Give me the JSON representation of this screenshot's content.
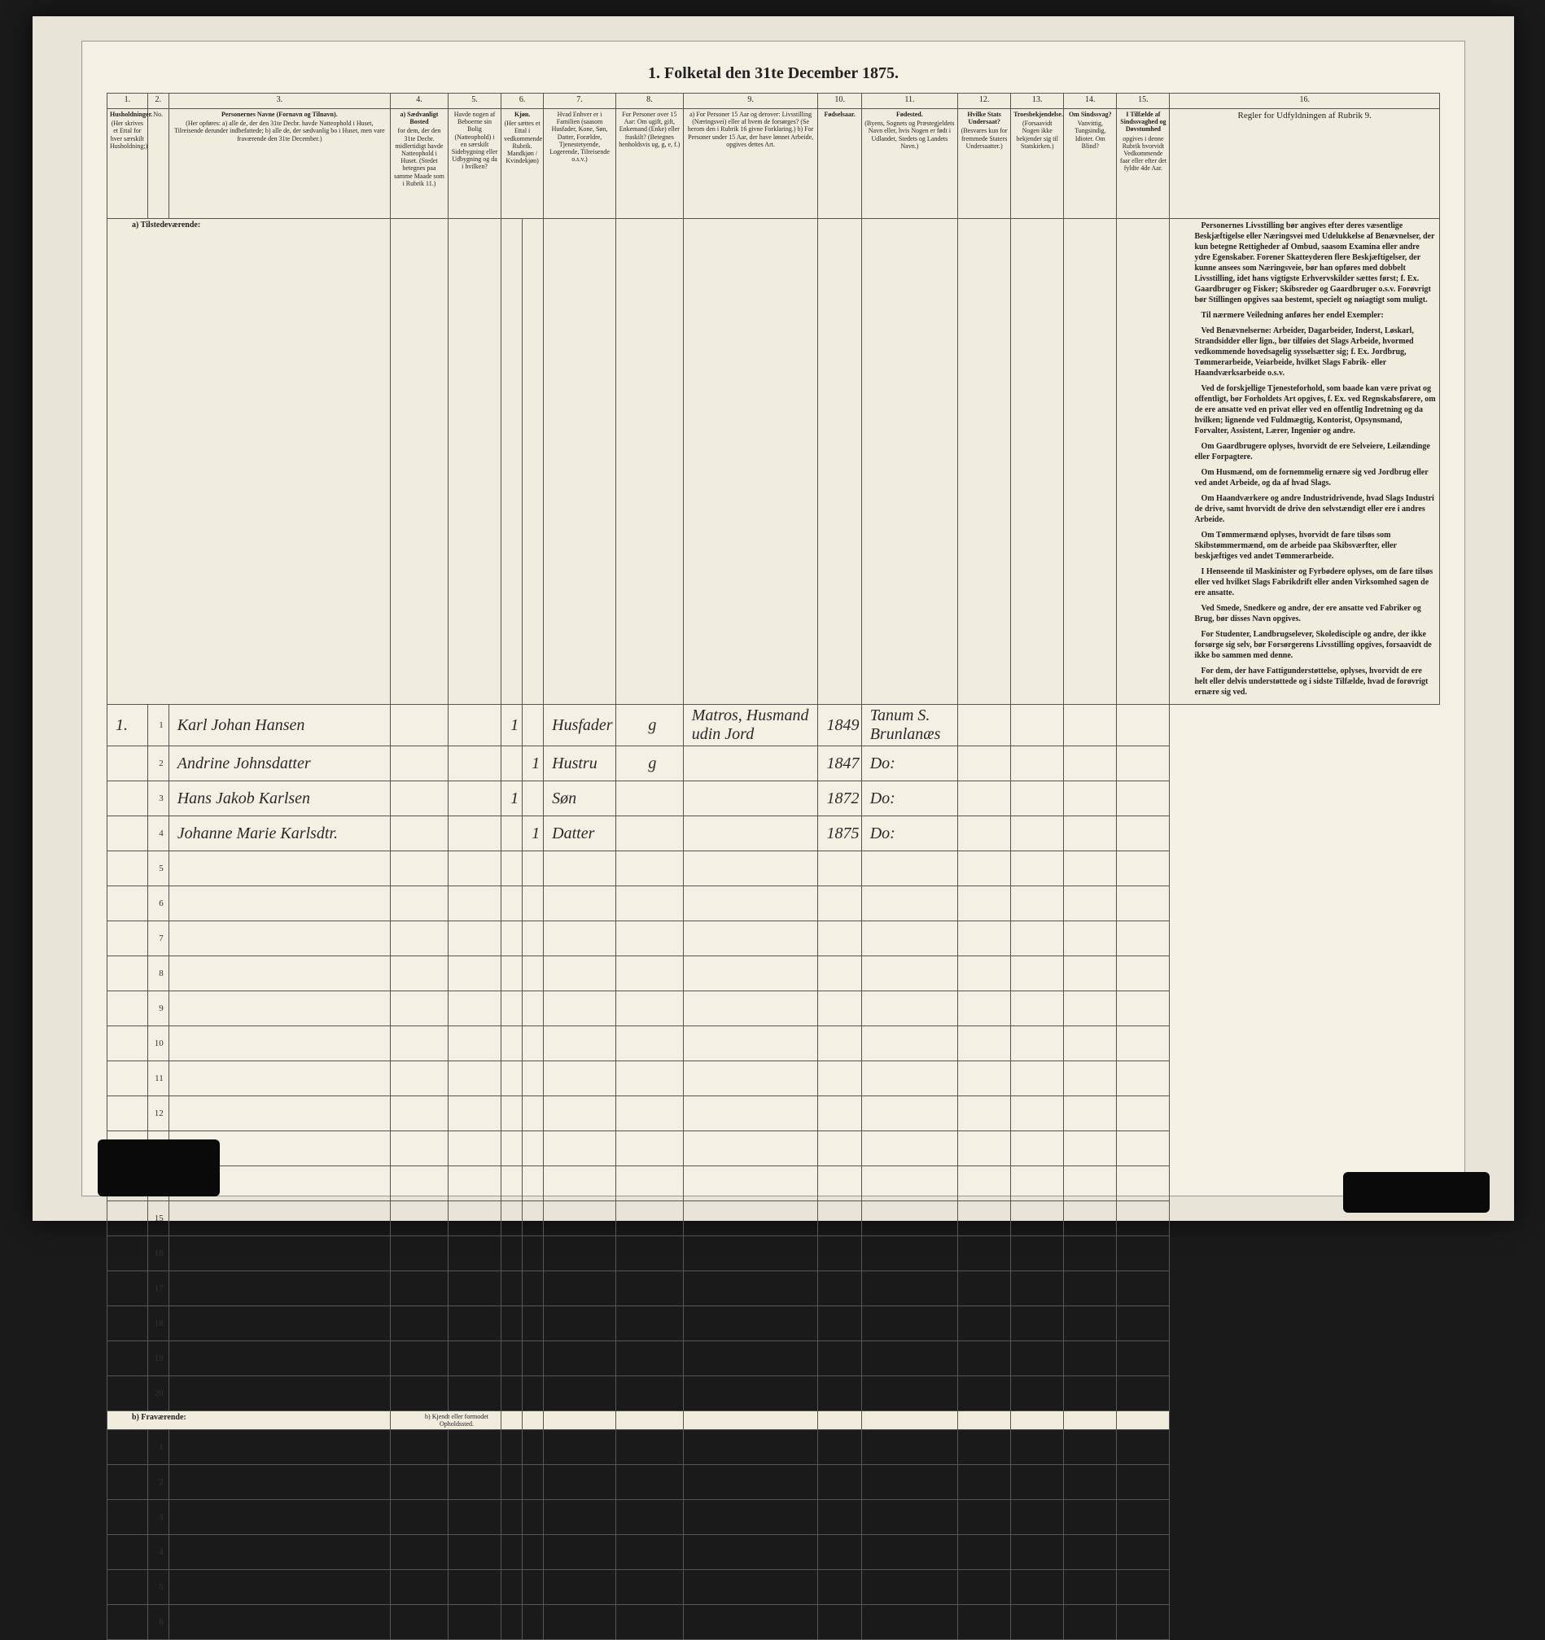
{
  "title": "1. Folketal den 31te December 1875.",
  "columns": {
    "nums": [
      "1.",
      "2.",
      "3.",
      "4.",
      "5.",
      "6.",
      "7.",
      "8.",
      "9.",
      "10.",
      "11.",
      "12.",
      "13.",
      "14.",
      "15.",
      "16."
    ],
    "h1": {
      "lbl": "Husholdninger.",
      "txt": "(Her skrives et Ettal for hver særskilt Husholdning;)"
    },
    "h2": {
      "txt": "No."
    },
    "h3": {
      "lbl": "Personernes Navne (Fornavn og Tilnavn).",
      "txt": "(Her opføres: a) alle de, der den 31te Decbr. havde Natteophold i Huset, Tilreisende derunder indbefattede; b) alle de, der sædvanlig bo i Huset, men vare fraværende den 31te December.)"
    },
    "h4": {
      "lbl": "a) Sædvanligt Bosted",
      "txt": "for dem, der den 31te Decbr. midlertidigt havde Natteophold i Huset. (Stedet betegnes paa samme Maade som i Rubrik 11.)"
    },
    "h5": {
      "txt": "Havde nogen af Beboerne sin Bolig (Natteophold) i en særskilt Sidebygning eller Udbygning og da i hvilken?"
    },
    "h6": {
      "lbl": "Kjøn.",
      "txt": "(Her sættes et Ettal i vedkommende Rubrik. Mandkjøn / Kvindekjøn)"
    },
    "h7": {
      "txt": "Hvad Enhver er i Familien (saasom Husfader, Kone, Søn, Datter, Forældre, Tjenestetyende, Logerende, Tilreisende o.s.v.)"
    },
    "h8": {
      "txt": "For Personer over 15 Aar: Om ugift, gift, Enkemand (Enke) eller fraskilt? (Betegnes henholdsvis ug, g, e, f.)"
    },
    "h9": {
      "txt": "a) For Personer 15 Aar og derover: Livsstilling (Næringsvei) eller af hvem de forsørges? (Se herom den i Rubrik 16 givne Forklaring.) b) For Personer under 15 Aar, der have lønnet Arbeide, opgives dettes Art."
    },
    "h10": {
      "lbl": "Fødselsaar."
    },
    "h11": {
      "lbl": "Fødested.",
      "txt": "(Byens, Sognets og Præstegjeldets Navn eller, hvis Nogen er født i Udlandet, Stedets og Landets Navn.)"
    },
    "h12": {
      "lbl": "Hvilke Stats Undersaat?",
      "txt": "(Besvares kun for fremmede Staters Undersaatter.)"
    },
    "h13": {
      "lbl": "Troesbekjendelse.",
      "txt": "(Forsaavidt Nogen ikke bekjender sig til Statskirken.)"
    },
    "h14": {
      "lbl": "Om Sindssvag?",
      "txt": "Vanvittig, Tungsindig, Idioter. Om Blind?"
    },
    "h15": {
      "lbl": "I Tilfælde af Sindssvaghed og Døvstumhed",
      "txt": "opgives i denne Rubrik hvorvidt Vedkommende faar eller efter det fyldte 4de Aar."
    },
    "h16": {
      "txt": "Regler for Udfyldningen af Rubrik 9."
    }
  },
  "section_a": "a) Tilstedeværende:",
  "section_b": "b) Fraværende:",
  "section_b_right": "b) Kjendt eller formodet Opholdssted.",
  "rows": [
    {
      "n": "1",
      "hh": "1.",
      "name": "Karl Johan Hansen",
      "sex_m": "1",
      "fam": "Husfader",
      "civ": "g",
      "occ": "Matros, Husmand udin Jord",
      "year": "1849",
      "place": "Tanum S. Brunlanæs"
    },
    {
      "n": "2",
      "hh": "",
      "name": "Andrine Johnsdatter",
      "sex_k": "1",
      "fam": "Hustru",
      "civ": "g",
      "occ": "",
      "year": "1847",
      "place": "Do:"
    },
    {
      "n": "3",
      "hh": "",
      "name": "Hans Jakob Karlsen",
      "sex_m": "1",
      "fam": "Søn",
      "civ": "",
      "occ": "",
      "year": "1872",
      "place": "Do:"
    },
    {
      "n": "4",
      "hh": "",
      "name": "Johanne Marie Karlsdtr.",
      "sex_k": "1",
      "fam": "Datter",
      "civ": "",
      "occ": "",
      "year": "1875",
      "place": "Do:"
    }
  ],
  "rules": [
    "Personernes Livsstilling bør angives efter deres væsentlige Beskjæftigelse eller Næringsvei med Udelukkelse af Benævnelser, der kun betegne Rettigheder af Ombud, saasom Examina eller andre ydre Egenskaber. Forener Skatteyderen flere Beskjæftigelser, der kunne ansees som Næringsveie, bør han opføres med dobbelt Livsstilling, idet hans vigtigste Erhvervskilder sættes først; f. Ex. Gaardbruger og Fisker; Skibsreder og Gaardbruger o.s.v. Forøvrigt bør Stillingen opgives saa bestemt, specielt og nøiagtigt som muligt.",
    "Til nærmere Veiledning anføres her endel Exempler:",
    "Ved Benævnelserne: Arbeider, Dagarbeider, Inderst, Løskarl, Strandsidder eller lign., bør tilføies det Slags Arbeide, hvormed vedkommende hovedsagelig sysselsætter sig; f. Ex. Jordbrug, Tømmerarbeide, Veiarbeide, hvilket Slags Fabrik- eller Haandværksarbeide o.s.v.",
    "Ved de forskjellige Tjenesteforhold, som baade kan være privat og offentligt, bør Forholdets Art opgives, f. Ex. ved Regnskabsførere, om de ere ansatte ved en privat eller ved en offentlig Indretning og da hvilken; lignende ved Fuldmægtig, Kontorist, Opsynsmand, Forvalter, Assistent, Lærer, Ingeniør og andre.",
    "Om Gaardbrugere oplyses, hvorvidt de ere Selveiere, Leilændinge eller Forpagtere.",
    "Om Husmænd, om de fornemmelig ernære sig ved Jordbrug eller ved andet Arbeide, og da af hvad Slags.",
    "Om Haandværkere og andre Industridrivende, hvad Slags Industri de drive, samt hvorvidt de drive den selvstændigt eller ere i andres Arbeide.",
    "Om Tømmermænd oplyses, hvorvidt de fare tilsøs som Skibstømmermænd, om de arbeide paa Skibsværfter, eller beskjæftiges ved andet Tømmerarbeide.",
    "I Henseende til Maskinister og Fyrbødere oplyses, om de fare tilsøs eller ved hvilket Slags Fabrikdrift eller anden Virksomhed sagen de ere ansatte.",
    "Ved Smede, Snedkere og andre, der ere ansatte ved Fabriker og Brug, bør disses Navn opgives.",
    "For Studenter, Landbrugselever, Skoledisciple og andre, der ikke forsørge sig selv, bør Forsørgerens Livsstilling opgives, forsaavidt de ikke bo sammen med denne.",
    "For dem, der have Fattigunderstøttelse, oplyses, hvorvidt de ere helt eller delvis understøttede og i sidste Tilfælde, hvad de forøvrigt ernære sig ved."
  ]
}
